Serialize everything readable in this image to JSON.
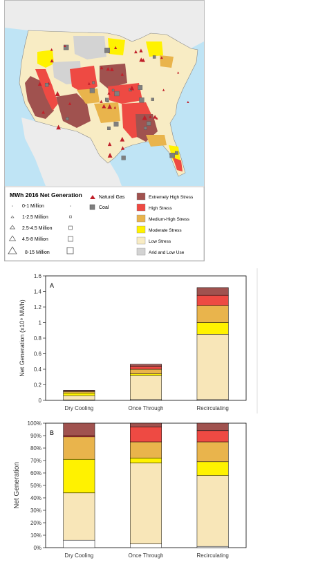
{
  "map": {
    "legend": {
      "title": "MWh 2016 Net Generation",
      "size_classes": [
        "0-1 Million",
        "1-2.5 Million",
        "2.5-4.5 Million",
        "4.5-8 Million",
        "8-15 Million"
      ],
      "plant_types": [
        {
          "label": "Natural Gas",
          "symbol": "triangle",
          "color": "#c0202a"
        },
        {
          "label": "Coal",
          "symbol": "square",
          "color": "#7f7f7f"
        }
      ],
      "stress_classes": [
        {
          "label": "Extremely High Stress",
          "color": "#a0524f"
        },
        {
          "label": "High Stress",
          "color": "#ee4a43"
        },
        {
          "label": "Medium-High Stress",
          "color": "#e9b44c"
        },
        {
          "label": "Moderate Stress",
          "color": "#fff200"
        },
        {
          "label": "Low Stress",
          "color": "#f8ecc4"
        },
        {
          "label": "Arid and Low Use",
          "color": "#d3d3d3"
        }
      ]
    },
    "colors": {
      "water": "#bfe4f5",
      "neighbor_land": "#ececec",
      "border": "#888888"
    }
  },
  "chart_data": [
    {
      "type": "bar",
      "stacked": true,
      "panel_label": "A",
      "categories": [
        "Dry Cooling",
        "Once Through",
        "Recirculating"
      ],
      "ylabel": "Net Generation (x10⁹ MWh)",
      "ylim": [
        0,
        1.6
      ],
      "yticks": [
        "0",
        "0.2",
        "0.4",
        "0.6",
        "0.8",
        "1",
        "1.2",
        "1.4",
        "1.6"
      ],
      "series": [
        {
          "color": "#ffffff",
          "values": [
            0.005,
            0.01,
            0.01
          ]
        },
        {
          "color": "#f8e6b8",
          "values": [
            0.055,
            0.31,
            0.84
          ]
        },
        {
          "color": "#fff200",
          "values": [
            0.035,
            0.02,
            0.15
          ]
        },
        {
          "color": "#e9b44c",
          "values": [
            0.02,
            0.06,
            0.22
          ]
        },
        {
          "color": "#ee4a43",
          "values": [
            0.005,
            0.035,
            0.13
          ]
        },
        {
          "color": "#a0524f",
          "values": [
            0.01,
            0.03,
            0.1
          ]
        }
      ]
    },
    {
      "type": "bar",
      "stacked": true,
      "panel_label": "B",
      "categories": [
        "Dry Cooling",
        "Once Through",
        "Recirculating"
      ],
      "ylabel": "Net Generation",
      "ylim": [
        0,
        100
      ],
      "yticks": [
        "0%",
        "10%",
        "20%",
        "30%",
        "40%",
        "50%",
        "60%",
        "70%",
        "80%",
        "90%",
        "100%"
      ],
      "series": [
        {
          "color": "#ffffff",
          "values": [
            6,
            3,
            1
          ]
        },
        {
          "color": "#f8e6b8",
          "values": [
            38,
            65,
            57
          ]
        },
        {
          "color": "#fff200",
          "values": [
            27,
            4,
            11
          ]
        },
        {
          "color": "#e9b44c",
          "values": [
            18,
            13,
            16
          ]
        },
        {
          "color": "#ee4a43",
          "values": [
            1,
            12,
            9
          ]
        },
        {
          "color": "#a0524f",
          "values": [
            10,
            3,
            6
          ]
        }
      ]
    }
  ]
}
